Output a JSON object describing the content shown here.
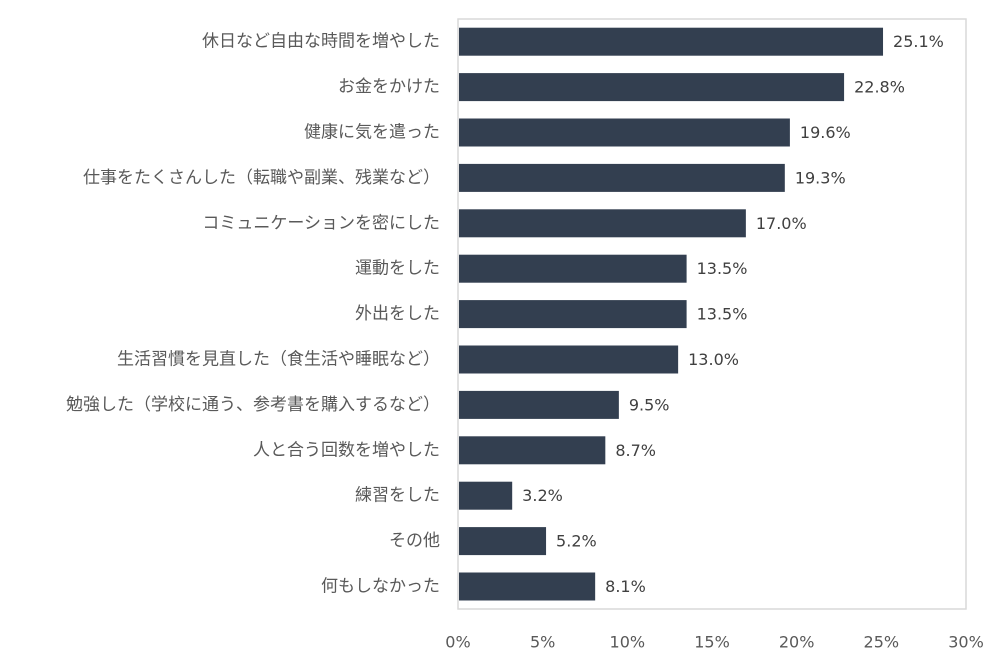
{
  "chart_data": {
    "type": "bar",
    "orientation": "horizontal",
    "categories": [
      "休日など自由な時間を増やした",
      "お金をかけた",
      "健康に気を遣った",
      "仕事をたくさんした（転職や副業、残業など）",
      "コミュニケーションを密にした",
      "運動をした",
      "外出をした",
      "生活習慣を見直した（食生活や睡眠など）",
      "勉強した（学校に通う、参考書を購入するなど）",
      "人と合う回数を増やした",
      "練習をした",
      "その他",
      "何もしなかった"
    ],
    "values": [
      25.1,
      22.8,
      19.6,
      19.3,
      17.0,
      13.5,
      13.5,
      13.0,
      9.5,
      8.7,
      3.2,
      5.2,
      8.1
    ],
    "value_labels": [
      "25.1%",
      "22.8%",
      "19.6%",
      "19.3%",
      "17.0%",
      "13.5%",
      "13.5%",
      "13.0%",
      "9.5%",
      "8.7%",
      "3.2%",
      "5.2%",
      "8.1%"
    ],
    "xlim": [
      0,
      30
    ],
    "x_ticks": [
      0,
      5,
      10,
      15,
      20,
      25,
      30
    ],
    "x_tick_labels": [
      "0%",
      "5%",
      "10%",
      "15%",
      "20%",
      "25%",
      "30%"
    ],
    "title": "",
    "xlabel": "",
    "ylabel": "",
    "grid": false,
    "colors": {
      "bar": "#333f50",
      "frame": "#d9d9d9"
    }
  }
}
